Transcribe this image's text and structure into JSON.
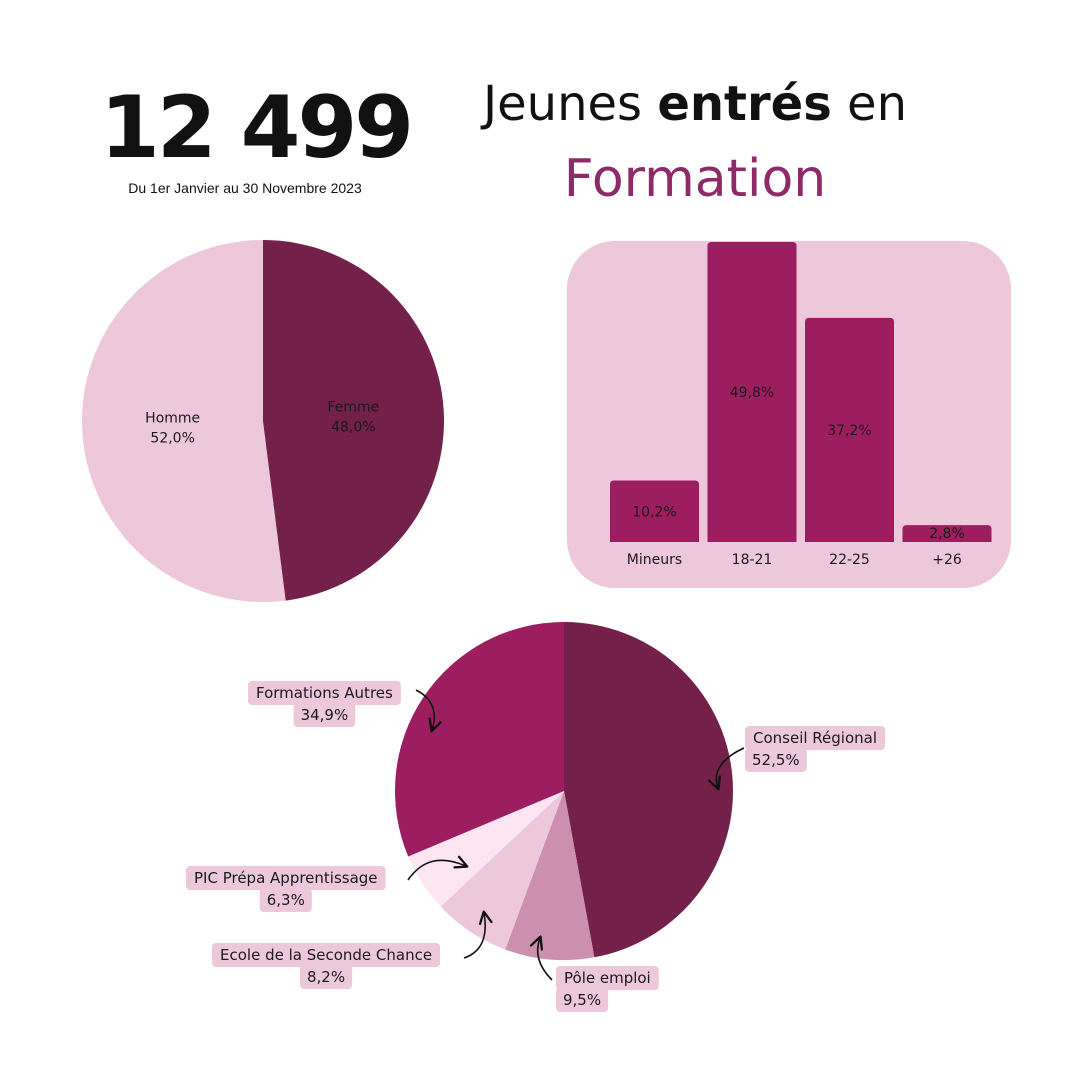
{
  "header": {
    "big_number": "12 499",
    "period": "Du 1er Janvier au 30 Novembre 2023",
    "headline_pre": "Jeunes ",
    "headline_strong": "entrés",
    "headline_post": " en",
    "headline_highlight": "Formation"
  },
  "colors": {
    "accent": "#8e2a68",
    "dark_plum": "#73204b",
    "magenta": "#9c1e60",
    "mauve": "#cd8fb0",
    "light_pink": "#ecc8da",
    "pale_pink": "#fde6f1",
    "panel": "#ecc8da"
  },
  "chart_data": [
    {
      "type": "pie",
      "categories": [
        "Homme",
        "Femme"
      ],
      "values": [
        52.0,
        48.0
      ],
      "value_labels": [
        "52,0%",
        "48,0%"
      ],
      "colors": [
        "#ecc8da",
        "#73204b"
      ]
    },
    {
      "type": "bar",
      "categories": [
        "Mineurs",
        "18-21",
        "22-25",
        "+26"
      ],
      "values": [
        10.2,
        49.8,
        37.2,
        2.8
      ],
      "value_labels": [
        "10,2%",
        "49,8%",
        "37,2%",
        "2,8%"
      ],
      "ylim": [
        0,
        49.8
      ],
      "bar_color": "#9c1e60"
    },
    {
      "type": "pie",
      "categories": [
        "Conseil Régional",
        "Pôle emploi",
        "Ecole de la Seconde Chance",
        "PIC Prépa Apprentissage",
        "Formations Autres"
      ],
      "values": [
        52.5,
        9.5,
        8.2,
        6.3,
        34.9
      ],
      "value_labels": [
        "52,5%",
        "9,5%",
        "8,2%",
        "6,3%",
        "34,9%"
      ],
      "colors": [
        "#73204b",
        "#cd8fb0",
        "#ecc8da",
        "#fde6f1",
        "#9c1e60"
      ]
    }
  ]
}
